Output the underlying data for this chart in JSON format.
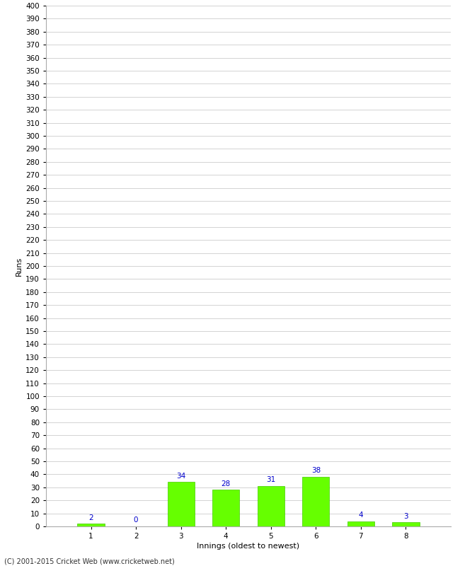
{
  "title": "",
  "categories": [
    "1",
    "2",
    "3",
    "4",
    "5",
    "6",
    "7",
    "8"
  ],
  "values": [
    2,
    0,
    34,
    28,
    31,
    38,
    4,
    3
  ],
  "bar_color": "#66ff00",
  "bar_edge_color": "#44cc00",
  "label_color": "#0000cc",
  "xlabel": "Innings (oldest to newest)",
  "ylabel": "Runs",
  "ylim": [
    0,
    400
  ],
  "ytick_step": 10,
  "grid_color": "#cccccc",
  "bg_color": "#ffffff",
  "footer": "(C) 2001-2015 Cricket Web (www.cricketweb.net)",
  "label_fontsize": 7.5,
  "axis_tick_fontsize": 7.5,
  "axis_label_fontsize": 8
}
